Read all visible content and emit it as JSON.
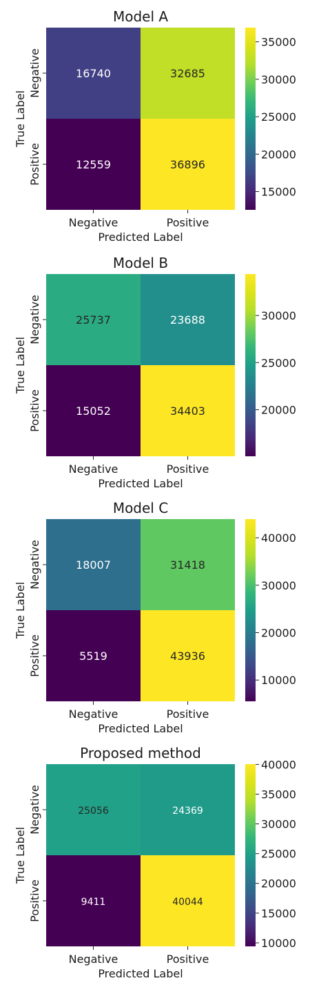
{
  "chart_data": [
    {
      "type": "heatmap",
      "title": "Model A",
      "xlabel": "Predicted Label",
      "ylabel": "True Label",
      "x_categories": [
        "Negative",
        "Positive"
      ],
      "y_categories": [
        "Negative",
        "Positive"
      ],
      "values": [
        [
          16740,
          32685
        ],
        [
          12559,
          36896
        ]
      ],
      "cell_labels": [
        [
          "16740",
          "32685"
        ],
        [
          "12559",
          "36896"
        ]
      ],
      "colormap": "viridis",
      "colorbar_range": [
        12559,
        36896
      ],
      "colorbar_ticks": [
        15000,
        20000,
        25000,
        30000,
        35000
      ],
      "colorbar_tick_labels": [
        "15000",
        "20000",
        "25000",
        "30000",
        "35000"
      ]
    },
    {
      "type": "heatmap",
      "title": "Model B",
      "xlabel": "Predicted Label",
      "ylabel": "True Label",
      "x_categories": [
        "Negative",
        "Positive"
      ],
      "y_categories": [
        "Negative",
        "Positive"
      ],
      "values": [
        [
          25737,
          23688
        ],
        [
          15052,
          34403
        ]
      ],
      "cell_labels": [
        [
          "25737",
          "23688"
        ],
        [
          "15052",
          "34403"
        ]
      ],
      "colormap": "viridis",
      "colorbar_range": [
        15052,
        34403
      ],
      "colorbar_ticks": [
        20000,
        25000,
        30000
      ],
      "colorbar_tick_labels": [
        "20000",
        "25000",
        "30000"
      ]
    },
    {
      "type": "heatmap",
      "title": "Model C",
      "xlabel": "Predicted Label",
      "ylabel": "True Label",
      "x_categories": [
        "Negative",
        "Positive"
      ],
      "y_categories": [
        "Negative",
        "Positive"
      ],
      "values": [
        [
          18007,
          31418
        ],
        [
          5519,
          43936
        ]
      ],
      "cell_labels": [
        [
          "18007",
          "31418"
        ],
        [
          "5519",
          "43936"
        ]
      ],
      "colormap": "viridis",
      "colorbar_range": [
        5519,
        43936
      ],
      "colorbar_ticks": [
        10000,
        20000,
        30000,
        40000
      ],
      "colorbar_tick_labels": [
        "10000",
        "20000",
        "30000",
        "40000"
      ]
    },
    {
      "type": "heatmap",
      "title": "Proposed method",
      "xlabel": "Predicted Label",
      "ylabel": "True Label",
      "x_categories": [
        "Negative",
        "Positive"
      ],
      "y_categories": [
        "Negative",
        "Positive"
      ],
      "values": [
        [
          25056,
          24369
        ],
        [
          9411,
          40044
        ]
      ],
      "cell_labels": [
        [
          "25056",
          "24369"
        ],
        [
          "9411",
          "40044"
        ]
      ],
      "colormap": "viridis",
      "colorbar_range": [
        9411,
        40044
      ],
      "colorbar_ticks": [
        10000,
        15000,
        20000,
        25000,
        30000,
        35000,
        40000
      ],
      "colorbar_tick_labels": [
        "10000",
        "15000",
        "20000",
        "25000",
        "30000",
        "35000",
        "40000"
      ]
    }
  ]
}
